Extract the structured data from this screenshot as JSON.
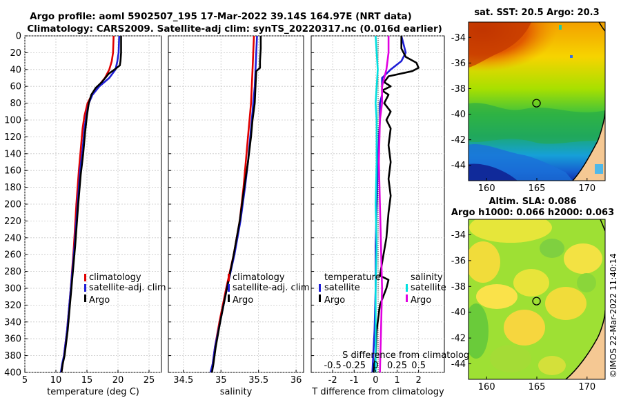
{
  "title_line1": "Argo profile: aoml 5902507_195 17-Mar-2022 39.14S 164.97E (NRT data)",
  "title_line2": "Climatology: CARS2009. Satellite-adj clim: synTS_20220317.nc (0.016d earlier)",
  "copyright": "©IMOS 22-Mar-2022 11:40:14",
  "colors": {
    "climatology": "#e00000",
    "satellite": "#1f1fd6",
    "argo": "#000000",
    "s_sat": "#00e0e0",
    "s_argo": "#e000e0"
  },
  "chart_data": [
    {
      "id": "temperature",
      "type": "line",
      "xlabel": "temperature (deg C)",
      "ylabel": "",
      "xlim": [
        5,
        27
      ],
      "ylim": [
        400,
        0
      ],
      "xticks": [
        "5",
        "10",
        "15",
        "20",
        "25"
      ],
      "xtick_values": [
        5,
        10,
        15,
        20,
        25
      ],
      "yticks": [
        "0",
        "20",
        "40",
        "60",
        "80",
        "100",
        "120",
        "140",
        "160",
        "180",
        "200",
        "220",
        "240",
        "260",
        "280",
        "300",
        "320",
        "340",
        "360",
        "380",
        "400"
      ],
      "legend": [
        "climatology",
        "satellite-adj. clim",
        "Argo"
      ],
      "series": [
        {
          "name": "climatology",
          "color": "#e00000",
          "points": [
            [
              19.3,
              0
            ],
            [
              19.2,
              20
            ],
            [
              19.0,
              30
            ],
            [
              18.6,
              40
            ],
            [
              17.9,
              50
            ],
            [
              16.8,
              60
            ],
            [
              15.8,
              70
            ],
            [
              15.1,
              80
            ],
            [
              14.6,
              95
            ],
            [
              14.3,
              110
            ],
            [
              14.0,
              135
            ],
            [
              13.7,
              160
            ],
            [
              13.3,
              200
            ],
            [
              12.9,
              250
            ],
            [
              12.4,
              300
            ],
            [
              11.8,
              350
            ],
            [
              11.3,
              380
            ],
            [
              11.1,
              390
            ],
            [
              10.9,
              400
            ]
          ]
        },
        {
          "name": "satellite-adj. clim",
          "color": "#1f1fd6",
          "points": [
            [
              20.2,
              0
            ],
            [
              20.1,
              20
            ],
            [
              19.9,
              30
            ],
            [
              19.6,
              40
            ],
            [
              18.6,
              50
            ],
            [
              17.0,
              60
            ],
            [
              15.9,
              70
            ],
            [
              15.3,
              80
            ],
            [
              14.9,
              95
            ],
            [
              14.6,
              110
            ],
            [
              14.3,
              135
            ],
            [
              13.9,
              160
            ],
            [
              13.5,
              200
            ],
            [
              13.0,
              250
            ],
            [
              12.4,
              300
            ],
            [
              11.8,
              350
            ],
            [
              11.3,
              380
            ],
            [
              11.0,
              390
            ],
            [
              10.8,
              400
            ]
          ]
        },
        {
          "name": "Argo",
          "color": "#000000",
          "points": [
            [
              20.5,
              0
            ],
            [
              20.5,
              20
            ],
            [
              20.4,
              30
            ],
            [
              20.3,
              35
            ],
            [
              19.8,
              38
            ],
            [
              18.5,
              45
            ],
            [
              17.4,
              55
            ],
            [
              16.4,
              62
            ],
            [
              15.7,
              70
            ],
            [
              15.3,
              80
            ],
            [
              15.0,
              95
            ],
            [
              14.7,
              115
            ],
            [
              14.4,
              140
            ],
            [
              14.0,
              165
            ],
            [
              13.6,
              200
            ],
            [
              13.1,
              250
            ],
            [
              12.5,
              300
            ],
            [
              11.9,
              350
            ],
            [
              11.4,
              380
            ],
            [
              11.1,
              390
            ],
            [
              10.9,
              400
            ]
          ]
        }
      ]
    },
    {
      "id": "salinity",
      "type": "line",
      "xlabel": "salinity",
      "xlim": [
        34.3,
        36.1
      ],
      "ylim": [
        400,
        0
      ],
      "xticks": [
        "34.5",
        "35",
        "35.5",
        "36"
      ],
      "xtick_values": [
        34.5,
        35,
        35.5,
        36
      ],
      "legend": [
        "climatology",
        "satellite-adj. clim",
        "Argo"
      ],
      "series": [
        {
          "name": "climatology",
          "color": "#e00000",
          "points": [
            [
              35.44,
              0
            ],
            [
              35.43,
              20
            ],
            [
              35.42,
              40
            ],
            [
              35.41,
              60
            ],
            [
              35.4,
              80
            ],
            [
              35.38,
              100
            ],
            [
              35.36,
              120
            ],
            [
              35.33,
              150
            ],
            [
              35.3,
              180
            ],
            [
              35.25,
              220
            ],
            [
              35.17,
              260
            ],
            [
              35.07,
              300
            ],
            [
              34.98,
              340
            ],
            [
              34.92,
              370
            ],
            [
              34.89,
              390
            ],
            [
              34.87,
              400
            ]
          ]
        },
        {
          "name": "satellite-adj. clim",
          "color": "#1f1fd6",
          "points": [
            [
              35.48,
              0
            ],
            [
              35.47,
              20
            ],
            [
              35.46,
              40
            ],
            [
              35.45,
              60
            ],
            [
              35.43,
              80
            ],
            [
              35.41,
              100
            ],
            [
              35.39,
              120
            ],
            [
              35.36,
              150
            ],
            [
              35.32,
              180
            ],
            [
              35.26,
              220
            ],
            [
              35.18,
              260
            ],
            [
              35.08,
              300
            ],
            [
              34.99,
              340
            ],
            [
              34.92,
              370
            ],
            [
              34.89,
              390
            ],
            [
              34.86,
              400
            ]
          ]
        },
        {
          "name": "Argo",
          "color": "#000000",
          "points": [
            [
              35.53,
              0
            ],
            [
              35.53,
              15
            ],
            [
              35.52,
              30
            ],
            [
              35.52,
              38
            ],
            [
              35.47,
              42
            ],
            [
              35.46,
              60
            ],
            [
              35.45,
              80
            ],
            [
              35.42,
              100
            ],
            [
              35.4,
              120
            ],
            [
              35.36,
              150
            ],
            [
              35.31,
              180
            ],
            [
              35.25,
              220
            ],
            [
              35.17,
              260
            ],
            [
              35.08,
              300
            ],
            [
              34.99,
              340
            ],
            [
              34.93,
              370
            ],
            [
              34.9,
              390
            ],
            [
              34.88,
              400
            ]
          ]
        }
      ]
    },
    {
      "id": "difference",
      "type": "line",
      "xlabel": "T difference from climatology",
      "top_label": "S difference from climatology",
      "xlim": [
        -3,
        3.2
      ],
      "ylim": [
        400,
        0
      ],
      "xticks": [
        "-2",
        "-1",
        "0",
        "1",
        "2"
      ],
      "xtick_values": [
        -2,
        -1,
        0,
        1,
        2
      ],
      "s_ticks": [
        "-0.5",
        "-0.25",
        "0",
        "0.25",
        "0.5"
      ],
      "legend_left_title": "temperature",
      "legend_right_title": "salinity",
      "legend_left": [
        "satellite",
        "Argo"
      ],
      "legend_right": [
        "satellite",
        "Argo"
      ],
      "series": [
        {
          "name": "T satellite",
          "color": "#1f1fd6",
          "points": [
            [
              1.2,
              0
            ],
            [
              1.3,
              10
            ],
            [
              1.4,
              20
            ],
            [
              1.2,
              30
            ],
            [
              0.7,
              40
            ],
            [
              0.3,
              50
            ],
            [
              0.3,
              60
            ],
            [
              0.3,
              70
            ],
            [
              0.2,
              80
            ],
            [
              0.2,
              100
            ],
            [
              0.1,
              150
            ],
            [
              0.05,
              200
            ],
            [
              0.0,
              250
            ],
            [
              0.0,
              300
            ],
            [
              -0.05,
              350
            ],
            [
              -0.15,
              400
            ]
          ]
        },
        {
          "name": "T Argo",
          "color": "#000000",
          "points": [
            [
              1.2,
              0
            ],
            [
              1.2,
              15
            ],
            [
              1.4,
              25
            ],
            [
              1.9,
              32
            ],
            [
              2.0,
              38
            ],
            [
              1.7,
              42
            ],
            [
              0.6,
              48
            ],
            [
              0.4,
              55
            ],
            [
              0.7,
              60
            ],
            [
              0.3,
              65
            ],
            [
              0.6,
              70
            ],
            [
              0.4,
              80
            ],
            [
              0.7,
              90
            ],
            [
              0.5,
              100
            ],
            [
              0.7,
              110
            ],
            [
              0.6,
              130
            ],
            [
              0.7,
              150
            ],
            [
              0.6,
              170
            ],
            [
              0.7,
              190
            ],
            [
              0.6,
              210
            ],
            [
              0.5,
              240
            ],
            [
              0.3,
              270
            ],
            [
              0.2,
              285
            ],
            [
              0.6,
              290
            ],
            [
              0.5,
              300
            ],
            [
              0.2,
              320
            ],
            [
              0.05,
              350
            ],
            [
              0.0,
              380
            ],
            [
              -0.1,
              400
            ]
          ]
        },
        {
          "name": "S satellite",
          "color": "#00e0e0",
          "points": [
            [
              0.0,
              0
            ],
            [
              0.05,
              20
            ],
            [
              0.1,
              40
            ],
            [
              0.05,
              60
            ],
            [
              0.0,
              80
            ],
            [
              0.05,
              100
            ],
            [
              0.05,
              150
            ],
            [
              0.0,
              200
            ],
            [
              0.05,
              250
            ],
            [
              0.0,
              300
            ],
            [
              0.0,
              350
            ],
            [
              0.0,
              400
            ]
          ]
        },
        {
          "name": "S Argo",
          "color": "#e000e0",
          "points": [
            [
              0.6,
              0
            ],
            [
              0.6,
              20
            ],
            [
              0.5,
              40
            ],
            [
              0.3,
              60
            ],
            [
              0.3,
              80
            ],
            [
              0.2,
              100
            ],
            [
              0.15,
              150
            ],
            [
              0.2,
              200
            ],
            [
              0.25,
              250
            ],
            [
              0.3,
              300
            ],
            [
              0.25,
              350
            ],
            [
              0.2,
              400
            ]
          ]
        }
      ]
    },
    {
      "id": "sst_map",
      "type": "heatmap",
      "title": "sat. SST: 20.5 Argo: 20.3",
      "xticks": [
        "160",
        "165",
        "170"
      ],
      "xtick_values": [
        160,
        165,
        170
      ],
      "yticks": [
        "-34",
        "-36",
        "-38",
        "-40",
        "-42",
        "-44"
      ],
      "ytick_values": [
        -34,
        -36,
        -38,
        -40,
        -42,
        -44
      ],
      "xlim": [
        158.2,
        171.8
      ],
      "ylim": [
        -45.2,
        -32.8
      ],
      "marker": [
        164.97,
        -39.14
      ]
    },
    {
      "id": "sla_map",
      "type": "heatmap",
      "title_line1": "Altim. SLA: 0.086",
      "title_line2": "Argo h1000: 0.066 h2000: 0.063",
      "xticks": [
        "160",
        "165",
        "170"
      ],
      "xtick_values": [
        160,
        165,
        170
      ],
      "yticks": [
        "-34",
        "-36",
        "-38",
        "-40",
        "-42",
        "-44"
      ],
      "ytick_values": [
        -34,
        -36,
        -38,
        -40,
        -42,
        -44
      ],
      "xlim": [
        158.2,
        171.8
      ],
      "ylim": [
        -45.2,
        -32.8
      ],
      "marker": [
        164.97,
        -39.14
      ]
    }
  ]
}
